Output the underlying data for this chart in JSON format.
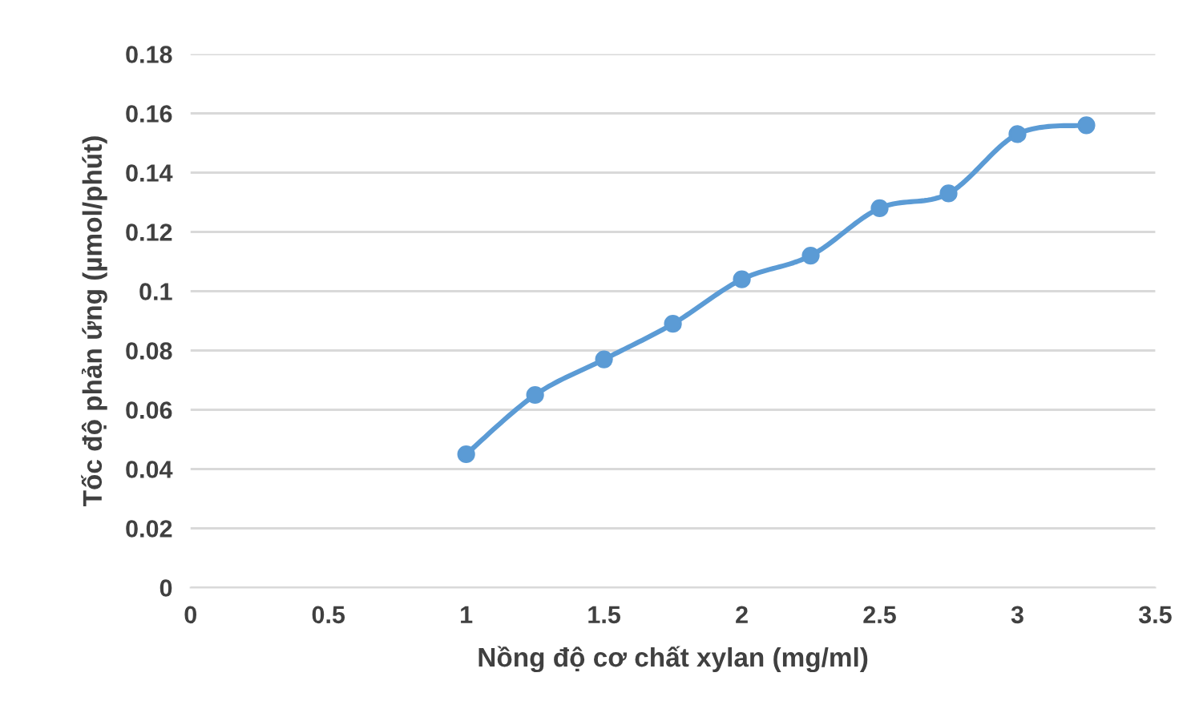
{
  "chart_data": {
    "type": "line",
    "xlabel": "Nồng độ cơ chất xylan (mg/ml)",
    "ylabel": "Tốc độ phản ứng (µmol/phút)",
    "x": [
      1,
      1.25,
      1.5,
      1.75,
      2,
      2.25,
      2.5,
      2.75,
      3,
      3.25
    ],
    "series": [
      {
        "color": "#5b9bd5",
        "values": [
          0.045,
          0.065,
          0.077,
          0.089,
          0.104,
          0.112,
          0.128,
          0.133,
          0.153,
          0.156
        ]
      }
    ],
    "xlim": [
      0,
      3.5
    ],
    "xticks": [
      0,
      0.5,
      1,
      1.5,
      2,
      2.5,
      3,
      3.5
    ],
    "ylim": [
      0,
      0.18
    ],
    "yticks": [
      0,
      0.02,
      0.04,
      0.06,
      0.08,
      0.1,
      0.12,
      0.14,
      0.16,
      0.18
    ],
    "grid": "y",
    "marker": "circle",
    "line_style": "solid"
  }
}
